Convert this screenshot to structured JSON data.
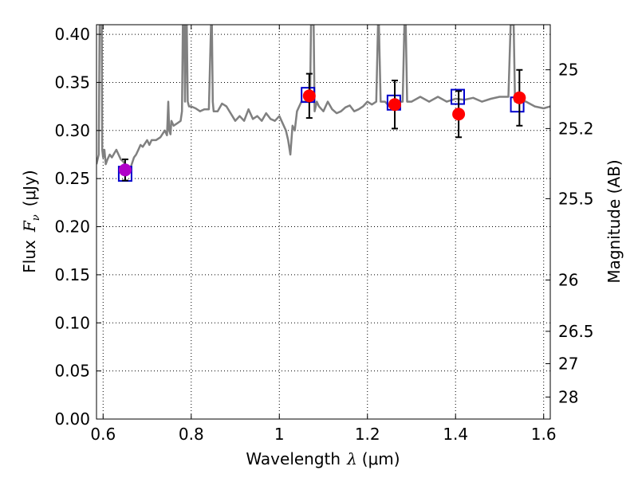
{
  "colors": {
    "spectrum": "#808080",
    "model_marker": "#0000cc",
    "observed_marker": "#ff0000",
    "observed_marker_first": "#b000c8",
    "error_bar": "#000000"
  },
  "chart_data": {
    "type": "scatter",
    "xlabel_text": "Wavelength",
    "xlabel_unit": "(μm)",
    "ylabel_text": "Flux",
    "ylabel_unit": "(μJy)",
    "y2label": "Magnitude (AB)",
    "xlim": [
      0.585,
      1.615
    ],
    "ylim": [
      0.0,
      0.41
    ],
    "grid": true,
    "x_ticks": [
      0.6,
      0.8,
      1.0,
      1.2,
      1.4,
      1.6
    ],
    "x_tick_labels": [
      "0.6",
      "0.8",
      "1",
      "1.2",
      "1.4",
      "1.6"
    ],
    "y_ticks": [
      0.0,
      0.05,
      0.1,
      0.15,
      0.2,
      0.25,
      0.3,
      0.35,
      0.4
    ],
    "y_tick_labels": [
      "0.00",
      "0.05",
      "0.10",
      "0.15",
      "0.20",
      "0.25",
      "0.30",
      "0.35",
      "0.40"
    ],
    "magnitude_ticks": [
      25,
      25.2,
      25.5,
      26,
      26.5,
      27,
      28
    ],
    "magnitude_tick_labels": [
      "25",
      "25.2",
      "25.5",
      "26",
      "26.5",
      "27",
      "28"
    ],
    "model_spectrum": {
      "name": "model spectrum",
      "x": [
        0.585,
        0.59,
        0.592,
        0.595,
        0.597,
        0.598,
        0.6,
        0.603,
        0.606,
        0.61,
        0.615,
        0.62,
        0.625,
        0.63,
        0.64,
        0.645,
        0.65,
        0.655,
        0.66,
        0.665,
        0.67,
        0.675,
        0.68,
        0.685,
        0.69,
        0.7,
        0.705,
        0.71,
        0.72,
        0.73,
        0.74,
        0.745,
        0.748,
        0.75,
        0.753,
        0.755,
        0.76,
        0.77,
        0.776,
        0.779,
        0.781,
        0.784,
        0.786,
        0.788,
        0.79,
        0.792,
        0.795,
        0.8,
        0.81,
        0.82,
        0.83,
        0.84,
        0.845,
        0.847,
        0.849,
        0.851,
        0.853,
        0.86,
        0.87,
        0.88,
        0.9,
        0.91,
        0.92,
        0.93,
        0.94,
        0.95,
        0.96,
        0.97,
        0.98,
        0.99,
        1.0,
        1.01,
        1.015,
        1.02,
        1.025,
        1.03,
        1.035,
        1.04,
        1.05,
        1.06,
        1.065,
        1.07,
        1.072,
        1.074,
        1.076,
        1.078,
        1.08,
        1.085,
        1.09,
        1.1,
        1.11,
        1.12,
        1.13,
        1.14,
        1.15,
        1.16,
        1.17,
        1.18,
        1.19,
        1.2,
        1.21,
        1.22,
        1.224,
        1.226,
        1.23,
        1.24,
        1.25,
        1.26,
        1.27,
        1.28,
        1.284,
        1.287,
        1.29,
        1.293,
        1.296,
        1.3,
        1.32,
        1.34,
        1.36,
        1.38,
        1.4,
        1.42,
        1.44,
        1.46,
        1.48,
        1.5,
        1.52,
        1.525,
        1.528,
        1.532,
        1.535,
        1.54,
        1.56,
        1.58,
        1.6,
        1.615
      ],
      "y": [
        0.265,
        0.275,
        0.41,
        0.41,
        0.41,
        0.28,
        0.272,
        0.28,
        0.265,
        0.27,
        0.275,
        0.272,
        0.276,
        0.28,
        0.27,
        0.268,
        0.265,
        0.26,
        0.258,
        0.265,
        0.272,
        0.275,
        0.28,
        0.285,
        0.283,
        0.29,
        0.285,
        0.29,
        0.29,
        0.293,
        0.3,
        0.295,
        0.33,
        0.3,
        0.296,
        0.31,
        0.305,
        0.308,
        0.31,
        0.32,
        0.41,
        0.41,
        0.33,
        0.41,
        0.41,
        0.33,
        0.325,
        0.325,
        0.323,
        0.32,
        0.322,
        0.322,
        0.41,
        0.41,
        0.33,
        0.32,
        0.32,
        0.32,
        0.328,
        0.325,
        0.31,
        0.315,
        0.31,
        0.322,
        0.312,
        0.315,
        0.31,
        0.318,
        0.312,
        0.31,
        0.315,
        0.305,
        0.3,
        0.29,
        0.275,
        0.305,
        0.3,
        0.32,
        0.33,
        0.33,
        0.33,
        0.34,
        0.41,
        0.41,
        0.41,
        0.41,
        0.32,
        0.33,
        0.325,
        0.32,
        0.33,
        0.322,
        0.318,
        0.32,
        0.324,
        0.326,
        0.32,
        0.322,
        0.325,
        0.33,
        0.327,
        0.33,
        0.41,
        0.41,
        0.33,
        0.33,
        0.325,
        0.33,
        0.33,
        0.33,
        0.41,
        0.41,
        0.33,
        0.33,
        0.33,
        0.33,
        0.335,
        0.33,
        0.335,
        0.33,
        0.333,
        0.332,
        0.334,
        0.33,
        0.333,
        0.335,
        0.335,
        0.41,
        0.41,
        0.41,
        0.33,
        0.332,
        0.33,
        0.325,
        0.323,
        0.325
      ]
    },
    "series": [
      {
        "name": "model photometry",
        "marker": "square",
        "x": [
          0.65,
          1.065,
          1.26,
          1.405,
          1.54
        ],
        "values": [
          0.255,
          0.337,
          0.329,
          0.335,
          0.327
        ]
      },
      {
        "name": "observed photometry",
        "marker": "circle",
        "x": [
          0.65,
          1.068,
          1.262,
          1.407,
          1.545
        ],
        "values": [
          0.259,
          0.336,
          0.327,
          0.317,
          0.334
        ],
        "yerr": [
          0.011,
          0.023,
          0.025,
          0.024,
          0.029
        ]
      }
    ]
  }
}
